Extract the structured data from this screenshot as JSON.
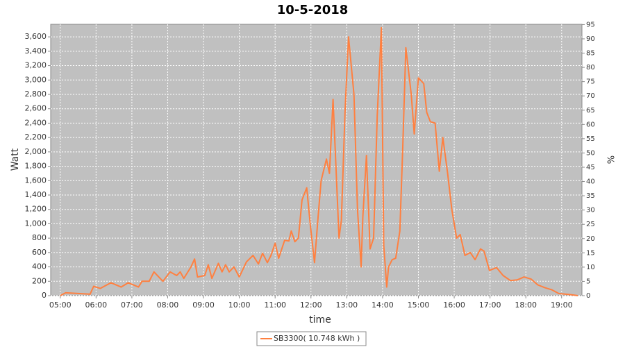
{
  "chart_data": {
    "type": "line",
    "title": "10-5-2018",
    "x_label": "time",
    "y_label": "Watt",
    "y2_label": "%",
    "x": [
      "05:00",
      "05:09",
      "05:50",
      "05:56",
      "06:07",
      "06:25",
      "06:42",
      "06:54",
      "07:11",
      "07:17",
      "07:29",
      "07:37",
      "07:52",
      "08:04",
      "08:15",
      "08:21",
      "08:27",
      "08:39",
      "08:45",
      "08:50",
      "09:02",
      "09:08",
      "09:14",
      "09:25",
      "09:31",
      "09:37",
      "09:43",
      "09:51",
      "10:00",
      "10:12",
      "10:23",
      "10:32",
      "10:39",
      "10:47",
      "10:53",
      "11:00",
      "11:06",
      "11:16",
      "11:23",
      "11:27",
      "11:33",
      "11:39",
      "11:45",
      "11:53",
      "11:59",
      "12:06",
      "12:12",
      "12:17",
      "12:26",
      "12:31",
      "12:37",
      "12:47",
      "12:51",
      "12:57",
      "13:03",
      "13:12",
      "13:18",
      "13:24",
      "13:27",
      "13:33",
      "13:39",
      "13:45",
      "13:51",
      "13:58",
      "14:02",
      "14:07",
      "14:10",
      "14:16",
      "14:22",
      "14:29",
      "14:34",
      "14:39",
      "14:48",
      "14:53",
      "15:00",
      "15:09",
      "15:14",
      "15:20",
      "15:28",
      "15:35",
      "15:41",
      "15:49",
      "15:56",
      "16:04",
      "16:10",
      "16:18",
      "16:27",
      "16:35",
      "16:44",
      "16:50",
      "16:59",
      "17:11",
      "17:22",
      "17:34",
      "17:46",
      "17:57",
      "18:09",
      "18:20",
      "18:32",
      "18:44",
      "18:55",
      "19:07",
      "19:19",
      "19:27"
    ],
    "series": [
      {
        "name": "SB3300( 10.748 kWh )",
        "color": "#ff8040",
        "values": [
          0,
          40,
          20,
          130,
          100,
          180,
          120,
          180,
          120,
          200,
          200,
          330,
          200,
          330,
          280,
          330,
          240,
          400,
          510,
          260,
          280,
          430,
          240,
          450,
          330,
          430,
          330,
          400,
          260,
          470,
          560,
          440,
          590,
          460,
          560,
          730,
          520,
          770,
          760,
          900,
          750,
          800,
          1330,
          1500,
          980,
          460,
          1100,
          1600,
          1900,
          1700,
          2730,
          800,
          1050,
          2550,
          3600,
          2800,
          1200,
          400,
          1100,
          1950,
          650,
          800,
          2500,
          3730,
          700,
          120,
          400,
          500,
          520,
          900,
          2100,
          3450,
          2800,
          2250,
          3030,
          2950,
          2550,
          2420,
          2400,
          1730,
          2200,
          1700,
          1200,
          800,
          850,
          560,
          600,
          500,
          650,
          620,
          350,
          390,
          280,
          210,
          220,
          260,
          230,
          150,
          110,
          80,
          30,
          20,
          10,
          0
        ]
      }
    ],
    "xlim": [
      "04:44",
      "19:34"
    ],
    "xticks": [
      "05:00",
      "06:00",
      "07:00",
      "08:00",
      "09:00",
      "10:00",
      "11:00",
      "12:00",
      "13:00",
      "14:00",
      "15:00",
      "16:00",
      "17:00",
      "18:00",
      "19:00"
    ],
    "ylim": [
      0,
      3775
    ],
    "yticks": [
      0,
      200,
      400,
      600,
      800,
      {
        "value": 1000,
        "label": "1,000"
      },
      {
        "value": 1200,
        "label": "1,200"
      },
      {
        "value": 1400,
        "label": "1,400"
      },
      {
        "value": 1600,
        "label": "1,600"
      },
      {
        "value": 1800,
        "label": "1,800"
      },
      {
        "value": 2000,
        "label": "2,000"
      },
      {
        "value": 2200,
        "label": "2,200"
      },
      {
        "value": 2400,
        "label": "2,400"
      },
      {
        "value": 2600,
        "label": "2,600"
      },
      {
        "value": 2800,
        "label": "2,800"
      },
      {
        "value": 3000,
        "label": "3,000"
      },
      {
        "value": 3200,
        "label": "3,200"
      },
      {
        "value": 3400,
        "label": "3,400"
      },
      {
        "value": 3600,
        "label": "3,600"
      }
    ],
    "y2lim": [
      0,
      95.1
    ],
    "y2ticks": [
      0,
      5,
      10,
      15,
      20,
      25,
      30,
      35,
      40,
      45,
      50,
      55,
      60,
      65,
      70,
      75,
      80,
      85,
      90,
      95
    ],
    "grid": true
  }
}
